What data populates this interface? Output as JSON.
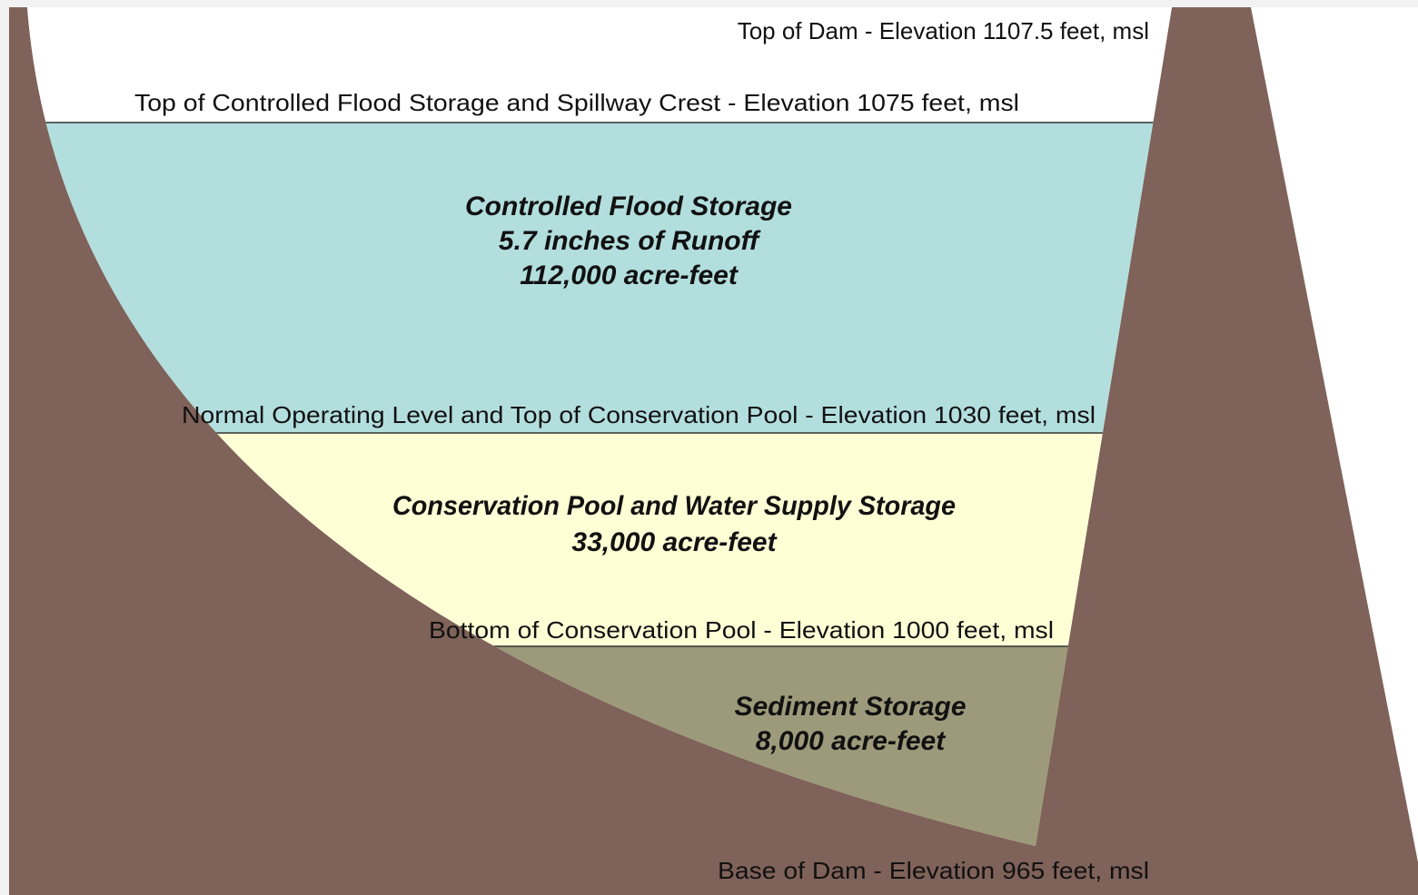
{
  "levels": [
    {
      "label": "Top of Dam - Elevation 1107.5 feet, msl"
    },
    {
      "label": "Top of Controlled Flood Storage and Spillway Crest - Elevation 1075 feet, msl"
    },
    {
      "label": "Normal Operating Level and Top of Conservation Pool - Elevation 1030 feet, msl"
    },
    {
      "label": "Bottom of Conservation Pool - Elevation 1000 feet, msl"
    },
    {
      "label": "Base of Dam - Elevation 965 feet, msl"
    }
  ],
  "zones": [
    {
      "lines": [
        "Controlled Flood Storage",
        "5.7 inches of Runoff",
        "112,000 acre-feet"
      ]
    },
    {
      "lines": [
        "Conservation Pool and Water Supply Storage",
        "33,000 acre-feet"
      ]
    },
    {
      "lines": [
        "Sediment Storage",
        "8,000 acre-feet"
      ]
    }
  ]
}
